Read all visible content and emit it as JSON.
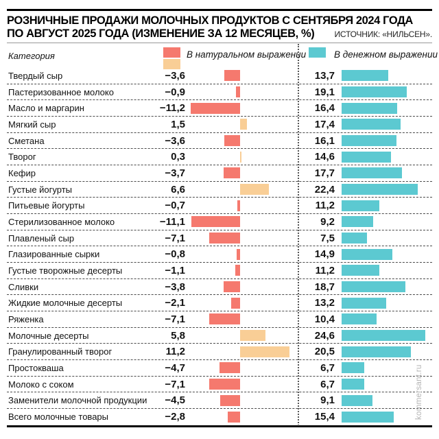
{
  "title": {
    "line1": "РОЗНИЧНЫЕ ПРОДАЖИ МОЛОЧНЫХ ПРОДУКТОВ С СЕНТЯБРЯ 2024 ГОДА",
    "line2": "ПО АВГУСТ 2025 ГОДА (ИЗМЕНЕНИЕ ЗА 12 МЕСЯЦЕВ, %)"
  },
  "source": "ИСТОЧНИК: «НИЛЬСЕН».",
  "watermark": "kommersant.ru",
  "legend": {
    "category": "Категория",
    "natural": "В натуральном выражении",
    "money": "В денежном выражении"
  },
  "colors": {
    "natural_negative": "#F5796E",
    "natural_positive": "#F9CE96",
    "money": "#5CC9D1"
  },
  "chart_data": {
    "type": "bar",
    "orientation": "horizontal",
    "title": "РОЗНИЧНЫЕ ПРОДАЖИ МОЛОЧНЫХ ПРОДУКТОВ С СЕНТЯБРЯ 2024 ГОДА ПО АВГУСТ 2025 ГОДА (ИЗМЕНЕНИЕ ЗА 12 МЕСЯЦЕВ, %)",
    "source": "ИСТОЧНИК: «НИЛЬСЕН».",
    "value_format": "comma-decimal, one digit",
    "categories": [
      "Твердый сыр",
      "Пастеризованное молоко",
      "Масло и маргарин",
      "Мягкий сыр",
      "Сметана",
      "Творог",
      "Кефир",
      "Густые йогурты",
      "Питьевые йогурты",
      "Стерилизованное молоко",
      "Плавленый сыр",
      "Глазированные сырки",
      "Густые творожные десерты",
      "Сливки",
      "Жидкие молочные десерты",
      "Ряженка",
      "Молочные десерты",
      "Гранулированный творог",
      "Простокваша",
      "Молоко с соком",
      "Заменители молочной продукции",
      "Всего молочные товары"
    ],
    "series": [
      {
        "name": "В натуральном выражении",
        "values": [
          -3.6,
          -0.9,
          -11.2,
          1.5,
          -3.6,
          0.3,
          -3.7,
          6.6,
          -0.7,
          -11.1,
          -7.1,
          -0.8,
          -1.1,
          -3.8,
          -2.1,
          -7.1,
          5.8,
          11.2,
          -4.7,
          -7.1,
          -4.5,
          -2.8
        ],
        "color_negative": "#F5796E",
        "color_positive": "#F9CE96"
      },
      {
        "name": "В денежном выражении",
        "values": [
          13.7,
          19.1,
          16.4,
          17.4,
          16.1,
          14.6,
          17.7,
          22.4,
          11.2,
          9.2,
          7.5,
          14.9,
          11.2,
          18.7,
          13.2,
          10.4,
          24.6,
          20.5,
          6.7,
          6.7,
          9.1,
          15.4
        ],
        "color": "#5CC9D1"
      }
    ]
  }
}
